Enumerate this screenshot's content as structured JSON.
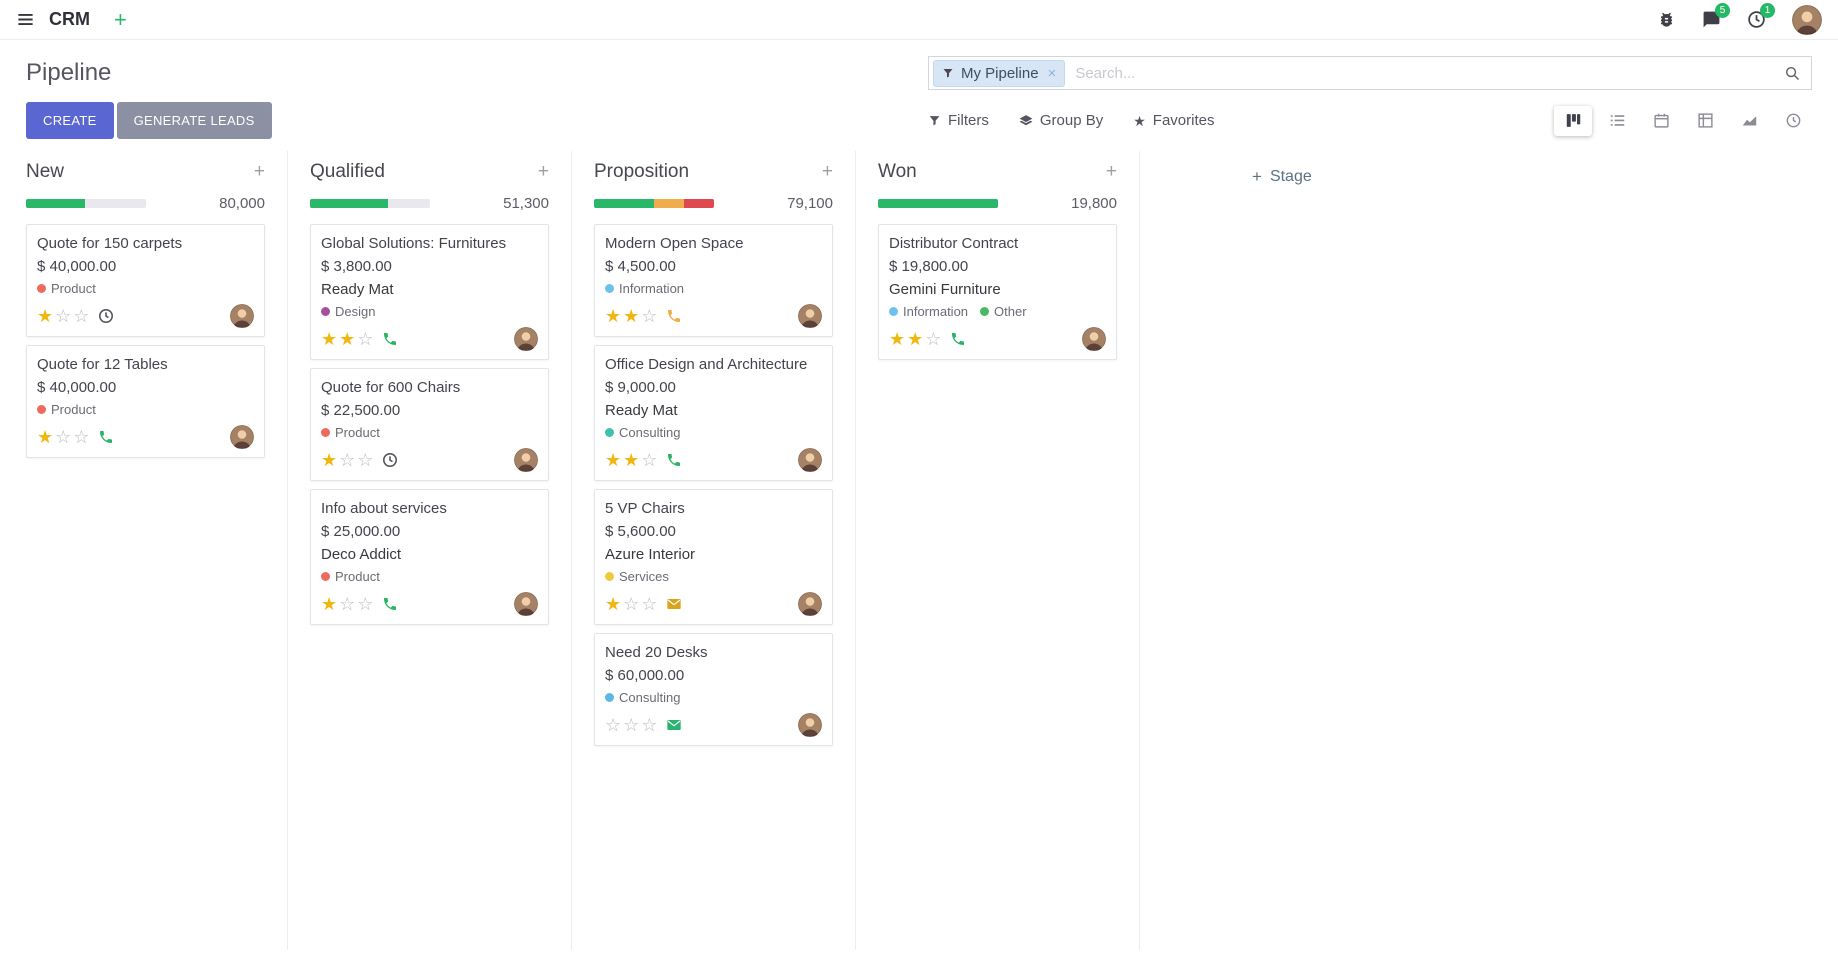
{
  "navbar": {
    "app_name": "CRM",
    "messages_badge": "5",
    "activities_badge": "1"
  },
  "control_panel": {
    "title": "Pipeline",
    "create_label": "CREATE",
    "generate_leads_label": "GENERATE LEADS",
    "active_view": "kanban",
    "search": {
      "facet": "My Pipeline",
      "placeholder": "Search..."
    },
    "menus": {
      "filters": "Filters",
      "group_by": "Group By",
      "favorites": "Favorites"
    }
  },
  "icons": {
    "plus": "+",
    "close": "×",
    "star_filled": "★",
    "star_empty": "☆",
    "favorites_star": "★"
  },
  "colors": {
    "primary": "#5a66d1",
    "secondary": "#8b90a2",
    "badge": "#25b865",
    "gold": "#efb810"
  },
  "board": {
    "add_stage": "Stage",
    "progress_colors": {
      "green": "#29b76a",
      "yellow": "#f0ad4e",
      "red": "#e0484f",
      "track": "#e8e8ee"
    },
    "columns": [
      {
        "name": "New",
        "total": "80,000",
        "progress": [
          [
            "green",
            49
          ]
        ],
        "cards": [
          {
            "title": "Quote for 150 carpets",
            "amount": "$ 40,000.00",
            "partner": "",
            "tags": [
              {
                "label": "Product",
                "color": "#ee6a5f"
              }
            ],
            "stars": 1,
            "activity": {
              "icon": "clock-icon",
              "color": "#55555e"
            }
          },
          {
            "title": "Quote for 12 Tables",
            "amount": "$ 40,000.00",
            "partner": "",
            "tags": [
              {
                "label": "Product",
                "color": "#ee6a5f"
              }
            ],
            "stars": 1,
            "activity": {
              "icon": "phone-icon",
              "color": "#28b463"
            }
          }
        ]
      },
      {
        "name": "Qualified",
        "total": "51,300",
        "progress": [
          [
            "green",
            65
          ]
        ],
        "cards": [
          {
            "title": "Global Solutions: Furnitures",
            "amount": "$ 3,800.00",
            "partner": "Ready Mat",
            "tags": [
              {
                "label": "Design",
                "color": "#a44f9d"
              }
            ],
            "stars": 2,
            "activity": {
              "icon": "phone-icon",
              "color": "#28b463"
            }
          },
          {
            "title": "Quote for 600 Chairs",
            "amount": "$ 22,500.00",
            "partner": "",
            "tags": [
              {
                "label": "Product",
                "color": "#ee6a5f"
              }
            ],
            "stars": 1,
            "activity": {
              "icon": "clock-icon",
              "color": "#55555e"
            }
          },
          {
            "title": "Info about services",
            "amount": "$ 25,000.00",
            "partner": "Deco Addict",
            "tags": [
              {
                "label": "Product",
                "color": "#ee6a5f"
              }
            ],
            "stars": 1,
            "activity": {
              "icon": "phone-icon",
              "color": "#28b463"
            }
          }
        ]
      },
      {
        "name": "Proposition",
        "total": "79,100",
        "progress": [
          [
            "green",
            50
          ],
          [
            "yellow",
            25
          ],
          [
            "red",
            25
          ]
        ],
        "cards": [
          {
            "title": "Modern Open Space",
            "amount": "$ 4,500.00",
            "partner": "",
            "tags": [
              {
                "label": "Information",
                "color": "#6ec1ec"
              }
            ],
            "stars": 2,
            "activity": {
              "icon": "phone-icon",
              "color": "#f0ab40"
            }
          },
          {
            "title": "Office Design and Architecture",
            "amount": "$ 9,000.00",
            "partner": "Ready Mat",
            "tags": [
              {
                "label": "Consulting",
                "color": "#41c0ad"
              }
            ],
            "stars": 2,
            "activity": {
              "icon": "phone-icon",
              "color": "#28b463"
            }
          },
          {
            "title": "5 VP Chairs",
            "amount": "$ 5,600.00",
            "partner": "Azure Interior",
            "tags": [
              {
                "label": "Services",
                "color": "#eec83d"
              }
            ],
            "stars": 1,
            "activity": {
              "icon": "envelope-icon",
              "color": "#d9a31c"
            }
          },
          {
            "title": "Need 20 Desks",
            "amount": "$ 60,000.00",
            "partner": "",
            "tags": [
              {
                "label": "Consulting",
                "color": "#5fb7e3"
              }
            ],
            "stars": 0,
            "activity": {
              "icon": "envelope-icon",
              "color": "#2bb273"
            }
          }
        ]
      },
      {
        "name": "Won",
        "total": "19,800",
        "progress": [
          [
            "green",
            100
          ]
        ],
        "cards": [
          {
            "title": "Distributor Contract",
            "amount": "$ 19,800.00",
            "partner": "Gemini Furniture",
            "tags": [
              {
                "label": "Information",
                "color": "#6ec1ec"
              },
              {
                "label": "Other",
                "color": "#49b963"
              }
            ],
            "stars": 2,
            "activity": {
              "icon": "phone-icon",
              "color": "#28b463"
            }
          }
        ]
      }
    ]
  }
}
